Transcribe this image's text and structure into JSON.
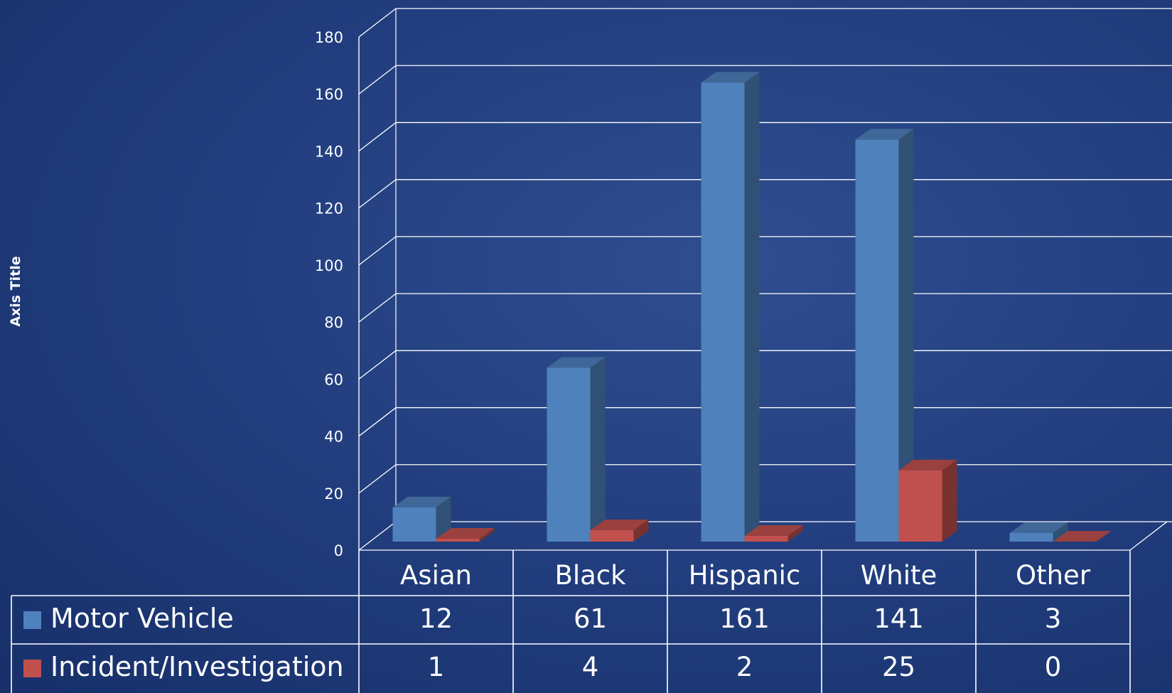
{
  "chart_data": {
    "type": "bar",
    "subtype": "3d-clustered-column-with-data-table",
    "ylabel": "Axis Title",
    "ylim": [
      0,
      180
    ],
    "yticks": [
      0,
      20,
      40,
      60,
      80,
      100,
      120,
      140,
      160,
      180
    ],
    "categories": [
      "Asian",
      "Black",
      "Hispanic",
      "White",
      "Other"
    ],
    "series": [
      {
        "name": "Motor Vehicle",
        "values": [
          12,
          61,
          161,
          141,
          3
        ],
        "color": "#4f81bd"
      },
      {
        "name": "Incident/Investigation",
        "values": [
          1,
          4,
          2,
          25,
          0
        ],
        "color": "#c0504d"
      }
    ],
    "grid": true,
    "legend": "data-table-keys"
  },
  "colors": {
    "background": "#233f80",
    "gridline": "#ffffff",
    "text": "#ffffff"
  }
}
